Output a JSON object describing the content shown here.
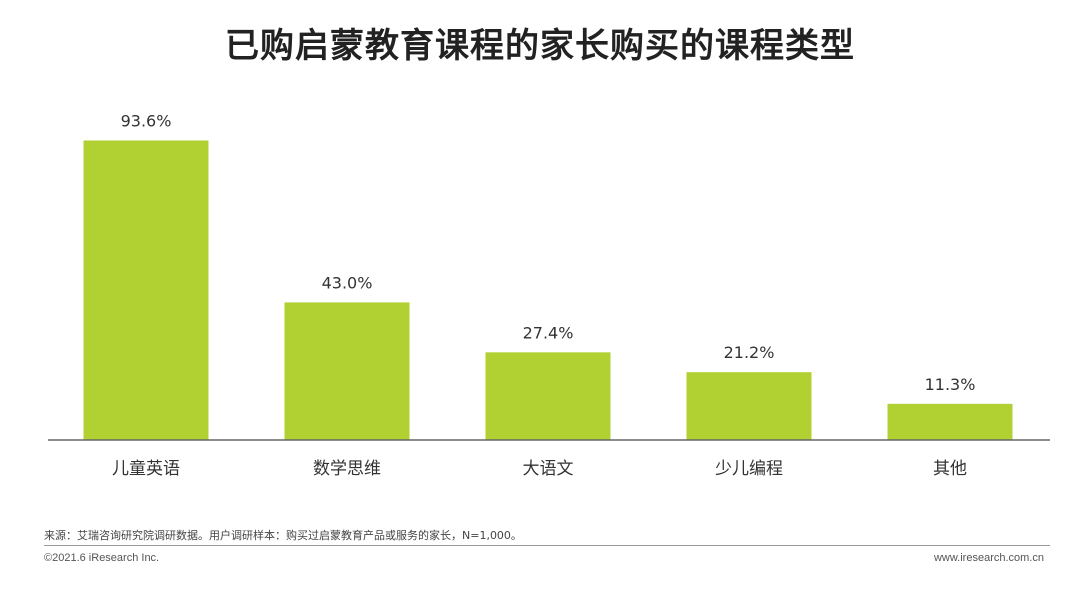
{
  "chart_data": {
    "type": "bar",
    "title": "已购启蒙教育课程的家长购买的课程类型",
    "categories": [
      "儿童英语",
      "数学思维",
      "大语文",
      "少儿编程",
      "其他"
    ],
    "values": [
      93.6,
      43.0,
      27.4,
      21.2,
      11.3
    ],
    "value_labels": [
      "93.6%",
      "43.0%",
      "27.4%",
      "21.2%",
      "11.3%"
    ],
    "ylim": [
      0,
      100
    ],
    "grid": false,
    "legend": "none",
    "bar_color": "#b1d133",
    "axis_color": "#666666"
  },
  "footer": {
    "source": "来源：艾瑞咨询研究院调研数据。用户调研样本：购买过启蒙教育产品或服务的家长，N=1,000。",
    "copyright": "©2021.6 iResearch Inc.",
    "website": "www.iresearch.com.cn"
  }
}
